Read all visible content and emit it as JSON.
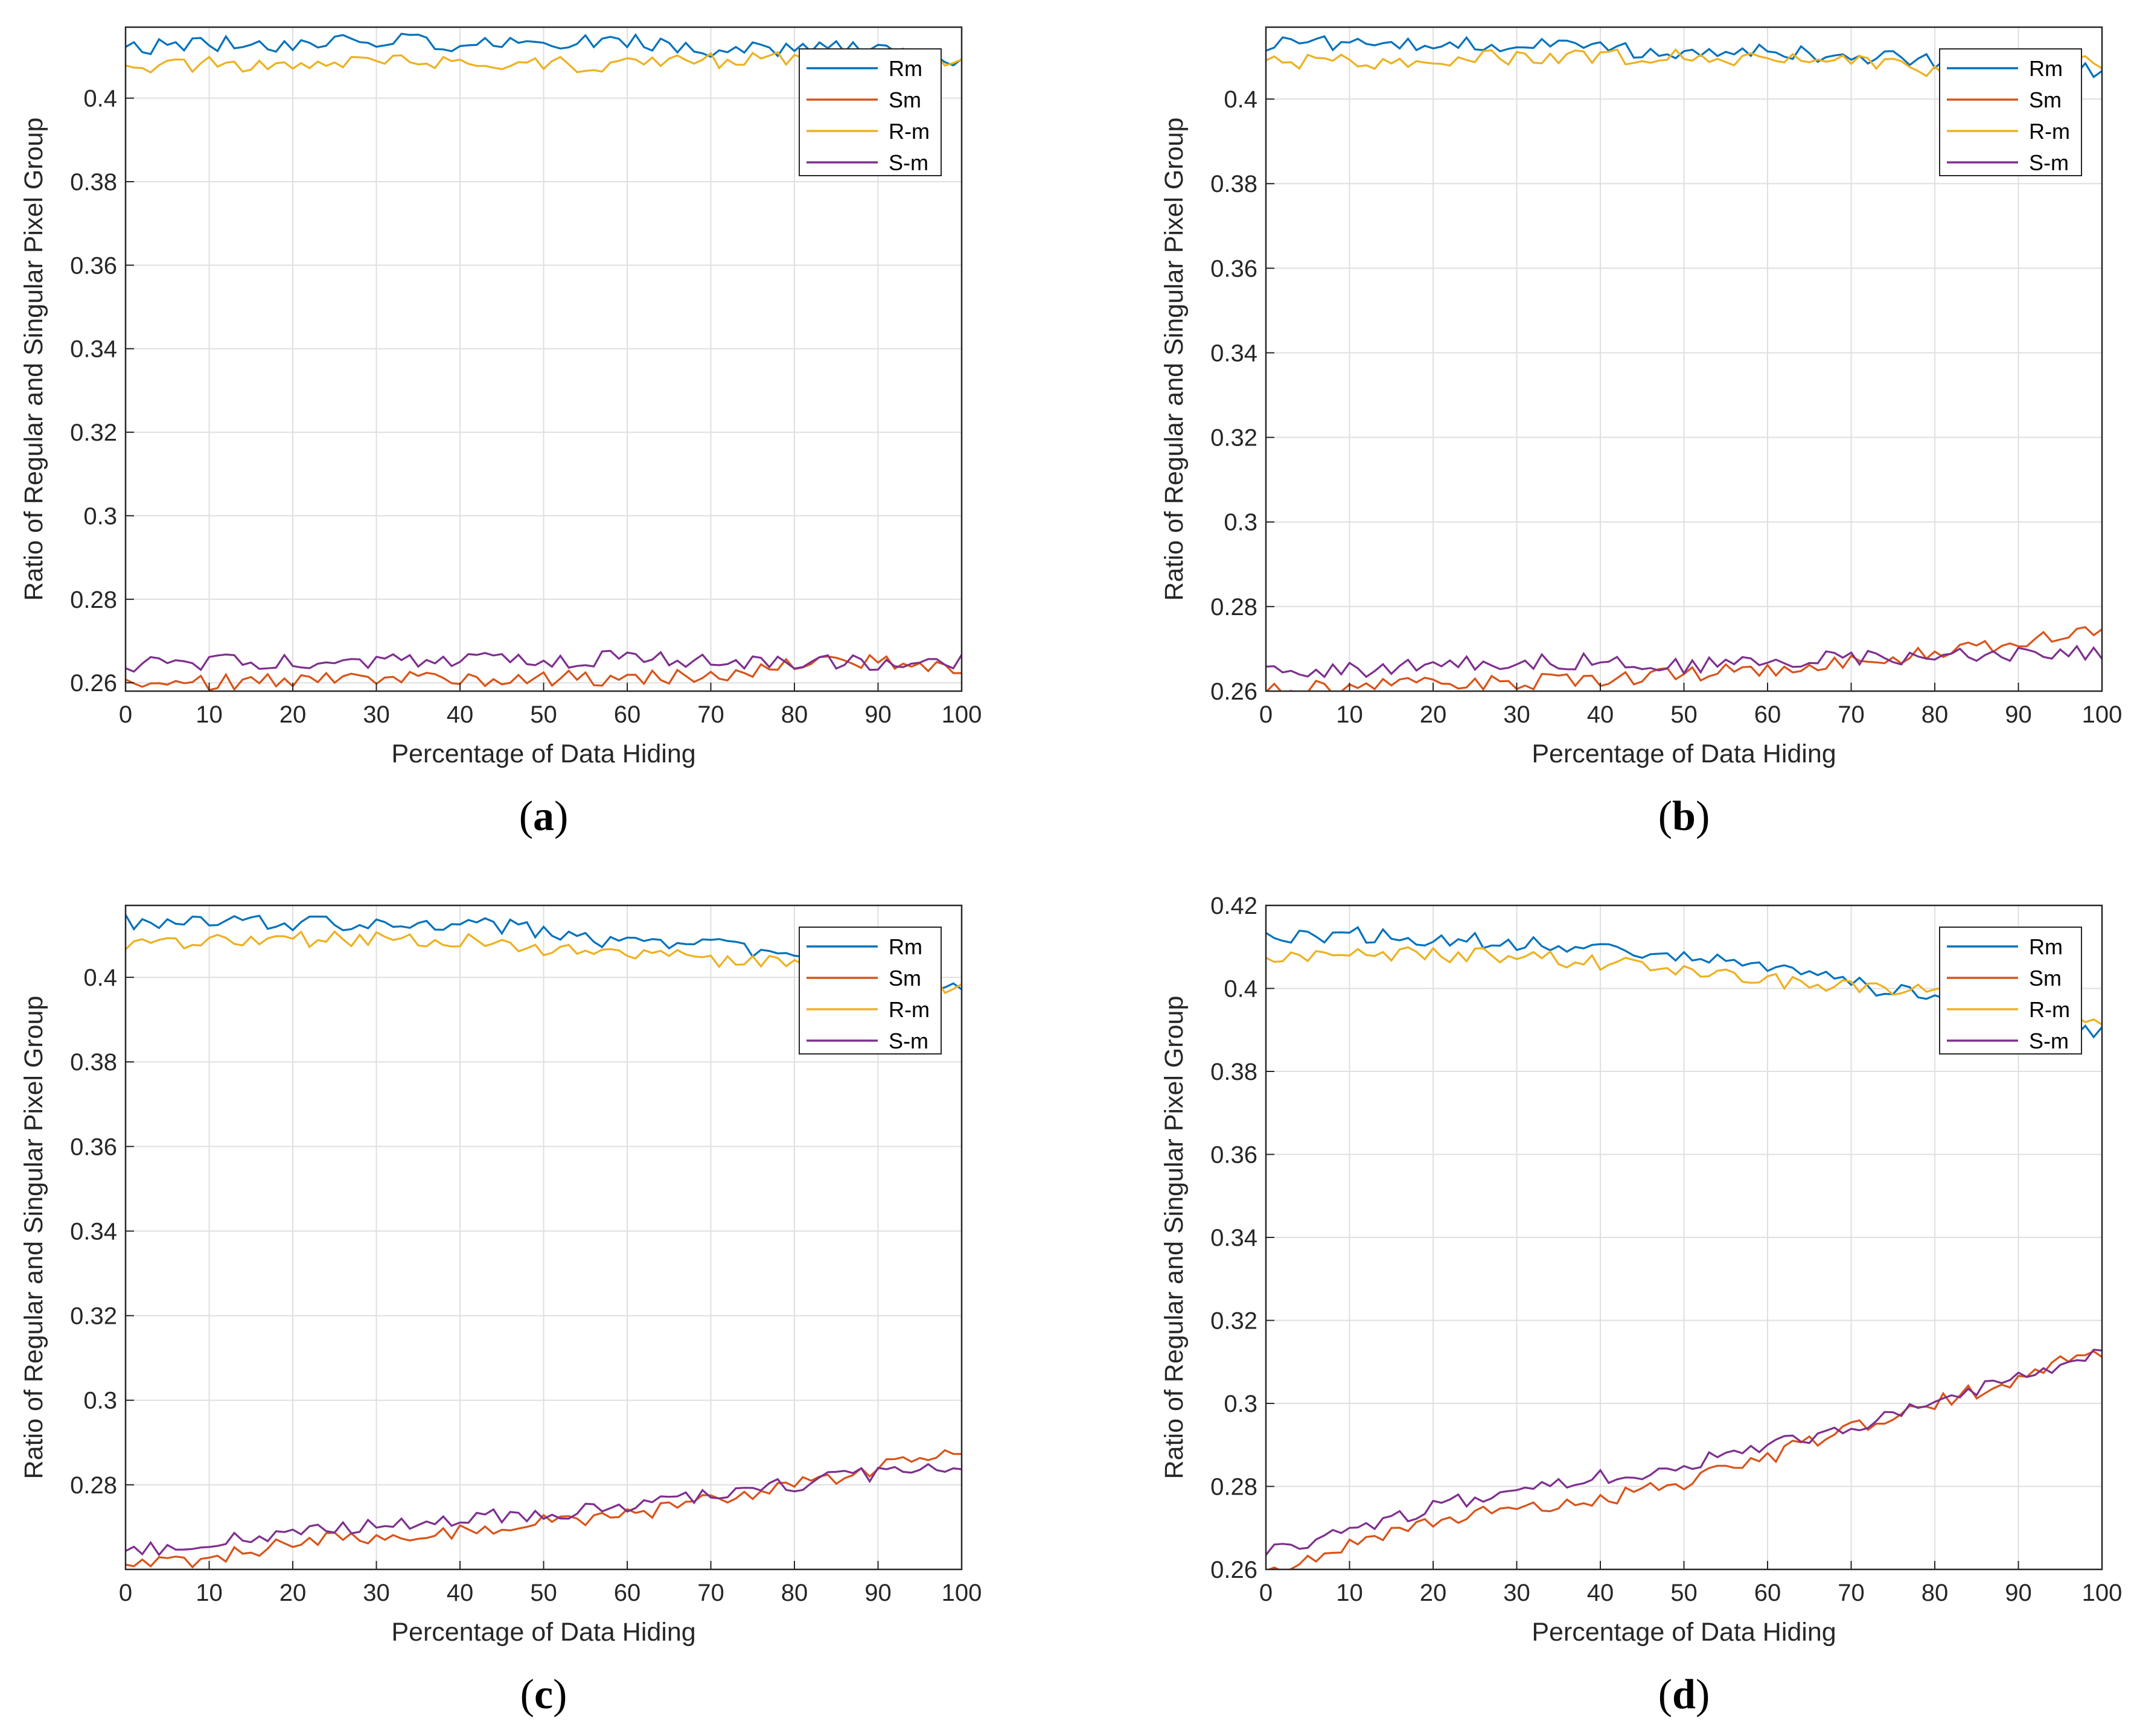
{
  "figure": {
    "captions": [
      "a",
      "b",
      "c",
      "d"
    ]
  },
  "chart_data": [
    {
      "type": "line",
      "panel": "a",
      "title": "",
      "xlabel": "Percentage of Data Hiding",
      "ylabel": "Ratio of Regular and Singular Pixel Group",
      "xlim": [
        0,
        100
      ],
      "ylim": [
        0.258,
        0.417
      ],
      "grid": true,
      "xticks": [
        0,
        10,
        20,
        30,
        40,
        50,
        60,
        70,
        80,
        90,
        100
      ],
      "yticks": [
        0.26,
        0.28,
        0.3,
        0.32,
        0.34,
        0.36,
        0.38,
        0.4
      ],
      "legend": "top-right",
      "series": [
        {
          "name": "Rm",
          "color": "#0072BD",
          "points": [
            [
              0,
              0.412
            ],
            [
              10,
              0.413
            ],
            [
              20,
              0.413
            ],
            [
              30,
              0.414
            ],
            [
              40,
              0.413
            ],
            [
              50,
              0.413
            ],
            [
              60,
              0.414
            ],
            [
              70,
              0.411
            ],
            [
              80,
              0.412
            ],
            [
              90,
              0.412
            ],
            [
              100,
              0.409
            ]
          ]
        },
        {
          "name": "Sm",
          "color": "#D95319",
          "points": [
            [
              0,
              0.26
            ],
            [
              10,
              0.26
            ],
            [
              20,
              0.261
            ],
            [
              30,
              0.261
            ],
            [
              40,
              0.261
            ],
            [
              50,
              0.261
            ],
            [
              60,
              0.261
            ],
            [
              70,
              0.262
            ],
            [
              80,
              0.264
            ],
            [
              90,
              0.265
            ],
            [
              100,
              0.264
            ]
          ]
        },
        {
          "name": "R-m",
          "color": "#EDB120",
          "points": [
            [
              0,
              0.408
            ],
            [
              10,
              0.408
            ],
            [
              20,
              0.408
            ],
            [
              30,
              0.409
            ],
            [
              40,
              0.409
            ],
            [
              50,
              0.408
            ],
            [
              60,
              0.408
            ],
            [
              70,
              0.409
            ],
            [
              80,
              0.41
            ],
            [
              90,
              0.409
            ],
            [
              100,
              0.408
            ]
          ]
        },
        {
          "name": "S-m",
          "color": "#7E2F8E",
          "points": [
            [
              0,
              0.264
            ],
            [
              10,
              0.265
            ],
            [
              20,
              0.265
            ],
            [
              30,
              0.265
            ],
            [
              40,
              0.266
            ],
            [
              50,
              0.265
            ],
            [
              60,
              0.266
            ],
            [
              70,
              0.265
            ],
            [
              80,
              0.265
            ],
            [
              90,
              0.265
            ],
            [
              100,
              0.265
            ]
          ]
        }
      ]
    },
    {
      "type": "line",
      "panel": "b",
      "title": "",
      "xlabel": "Percentage of Data Hiding",
      "ylabel": "Ratio of Regular and Singular Pixel Group",
      "xlim": [
        0,
        100
      ],
      "ylim": [
        0.26,
        0.417
      ],
      "grid": true,
      "xticks": [
        0,
        10,
        20,
        30,
        40,
        50,
        60,
        70,
        80,
        90,
        100
      ],
      "yticks": [
        0.26,
        0.28,
        0.3,
        0.32,
        0.34,
        0.36,
        0.38,
        0.4
      ],
      "legend": "top-right",
      "series": [
        {
          "name": "Rm",
          "color": "#0072BD",
          "points": [
            [
              0,
              0.413
            ],
            [
              10,
              0.413
            ],
            [
              20,
              0.413
            ],
            [
              30,
              0.413
            ],
            [
              40,
              0.412
            ],
            [
              50,
              0.411
            ],
            [
              60,
              0.411
            ],
            [
              70,
              0.41
            ],
            [
              80,
              0.409
            ],
            [
              90,
              0.409
            ],
            [
              100,
              0.406
            ]
          ]
        },
        {
          "name": "Sm",
          "color": "#D95319",
          "points": [
            [
              0,
              0.26
            ],
            [
              10,
              0.261
            ],
            [
              20,
              0.262
            ],
            [
              30,
              0.262
            ],
            [
              40,
              0.263
            ],
            [
              50,
              0.264
            ],
            [
              60,
              0.265
            ],
            [
              70,
              0.267
            ],
            [
              80,
              0.269
            ],
            [
              90,
              0.272
            ],
            [
              100,
              0.274
            ]
          ]
        },
        {
          "name": "R-m",
          "color": "#EDB120",
          "points": [
            [
              0,
              0.409
            ],
            [
              10,
              0.409
            ],
            [
              20,
              0.409
            ],
            [
              30,
              0.41
            ],
            [
              40,
              0.41
            ],
            [
              50,
              0.41
            ],
            [
              60,
              0.409
            ],
            [
              70,
              0.409
            ],
            [
              80,
              0.407
            ],
            [
              90,
              0.408
            ],
            [
              100,
              0.409
            ]
          ]
        },
        {
          "name": "S-m",
          "color": "#7E2F8E",
          "points": [
            [
              0,
              0.264
            ],
            [
              10,
              0.265
            ],
            [
              20,
              0.266
            ],
            [
              30,
              0.267
            ],
            [
              40,
              0.267
            ],
            [
              50,
              0.266
            ],
            [
              60,
              0.267
            ],
            [
              70,
              0.268
            ],
            [
              80,
              0.268
            ],
            [
              90,
              0.269
            ],
            [
              100,
              0.269
            ]
          ]
        }
      ]
    },
    {
      "type": "line",
      "panel": "c",
      "title": "",
      "xlabel": "Percentage of Data Hiding",
      "ylabel": "Ratio of Regular and Singular Pixel Group",
      "xlim": [
        0,
        100
      ],
      "ylim": [
        0.26,
        0.417
      ],
      "grid": true,
      "xticks": [
        0,
        10,
        20,
        30,
        40,
        50,
        60,
        70,
        80,
        90,
        100
      ],
      "yticks": [
        0.28,
        0.3,
        0.32,
        0.34,
        0.36,
        0.38,
        0.4
      ],
      "legend": "top-right",
      "series": [
        {
          "name": "Rm",
          "color": "#0072BD",
          "points": [
            [
              0,
              0.413
            ],
            [
              10,
              0.414
            ],
            [
              20,
              0.413
            ],
            [
              30,
              0.413
            ],
            [
              40,
              0.413
            ],
            [
              50,
              0.411
            ],
            [
              60,
              0.408
            ],
            [
              70,
              0.408
            ],
            [
              80,
              0.405
            ],
            [
              90,
              0.403
            ],
            [
              100,
              0.397
            ]
          ]
        },
        {
          "name": "Sm",
          "color": "#D95319",
          "points": [
            [
              0,
              0.26
            ],
            [
              10,
              0.263
            ],
            [
              20,
              0.266
            ],
            [
              30,
              0.268
            ],
            [
              40,
              0.269
            ],
            [
              50,
              0.271
            ],
            [
              60,
              0.273
            ],
            [
              70,
              0.276
            ],
            [
              80,
              0.28
            ],
            [
              90,
              0.284
            ],
            [
              100,
              0.287
            ]
          ]
        },
        {
          "name": "R-m",
          "color": "#EDB120",
          "points": [
            [
              0,
              0.408
            ],
            [
              10,
              0.409
            ],
            [
              20,
              0.409
            ],
            [
              30,
              0.409
            ],
            [
              40,
              0.409
            ],
            [
              50,
              0.406
            ],
            [
              60,
              0.406
            ],
            [
              70,
              0.404
            ],
            [
              80,
              0.403
            ],
            [
              90,
              0.401
            ],
            [
              100,
              0.397
            ]
          ]
        },
        {
          "name": "S-m",
          "color": "#7E2F8E",
          "points": [
            [
              0,
              0.264
            ],
            [
              10,
              0.267
            ],
            [
              20,
              0.269
            ],
            [
              30,
              0.271
            ],
            [
              40,
              0.272
            ],
            [
              50,
              0.273
            ],
            [
              60,
              0.275
            ],
            [
              70,
              0.278
            ],
            [
              80,
              0.28
            ],
            [
              90,
              0.283
            ],
            [
              100,
              0.285
            ]
          ]
        }
      ]
    },
    {
      "type": "line",
      "panel": "d",
      "title": "",
      "xlabel": "Percentage of Data Hiding",
      "ylabel": "Ratio of Regular and Singular Pixel Group",
      "xlim": [
        0,
        100
      ],
      "ylim": [
        0.26,
        0.42
      ],
      "grid": true,
      "xticks": [
        0,
        10,
        20,
        30,
        40,
        50,
        60,
        70,
        80,
        90,
        100
      ],
      "yticks": [
        0.26,
        0.28,
        0.3,
        0.32,
        0.34,
        0.36,
        0.38,
        0.4,
        0.42
      ],
      "legend": "top-right",
      "series": [
        {
          "name": "Rm",
          "color": "#0072BD",
          "points": [
            [
              0,
              0.412
            ],
            [
              10,
              0.413
            ],
            [
              20,
              0.412
            ],
            [
              30,
              0.411
            ],
            [
              40,
              0.41
            ],
            [
              50,
              0.408
            ],
            [
              60,
              0.405
            ],
            [
              70,
              0.401
            ],
            [
              80,
              0.398
            ],
            [
              90,
              0.394
            ],
            [
              100,
              0.389
            ]
          ]
        },
        {
          "name": "Sm",
          "color": "#D95319",
          "points": [
            [
              0,
              0.26
            ],
            [
              10,
              0.266
            ],
            [
              20,
              0.272
            ],
            [
              30,
              0.274
            ],
            [
              40,
              0.277
            ],
            [
              50,
              0.281
            ],
            [
              60,
              0.287
            ],
            [
              70,
              0.294
            ],
            [
              80,
              0.3
            ],
            [
              90,
              0.306
            ],
            [
              100,
              0.313
            ]
          ]
        },
        {
          "name": "R-m",
          "color": "#EDB120",
          "points": [
            [
              0,
              0.408
            ],
            [
              10,
              0.409
            ],
            [
              20,
              0.408
            ],
            [
              30,
              0.408
            ],
            [
              40,
              0.406
            ],
            [
              50,
              0.405
            ],
            [
              60,
              0.402
            ],
            [
              70,
              0.4
            ],
            [
              80,
              0.399
            ],
            [
              90,
              0.395
            ],
            [
              100,
              0.392
            ]
          ]
        },
        {
          "name": "S-m",
          "color": "#7E2F8E",
          "points": [
            [
              0,
              0.264
            ],
            [
              10,
              0.27
            ],
            [
              20,
              0.275
            ],
            [
              30,
              0.279
            ],
            [
              40,
              0.282
            ],
            [
              50,
              0.285
            ],
            [
              60,
              0.29
            ],
            [
              70,
              0.294
            ],
            [
              80,
              0.3
            ],
            [
              90,
              0.306
            ],
            [
              100,
              0.312
            ]
          ]
        }
      ]
    }
  ]
}
